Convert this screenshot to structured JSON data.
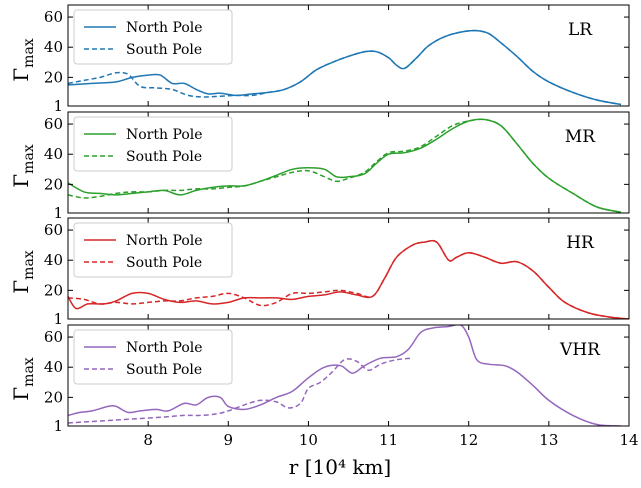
{
  "figure": {
    "xlabel": "r [10⁴ km]",
    "ylabel_main": "Γ",
    "ylabel_sub": "max"
  },
  "chart_data": [
    {
      "type": "line",
      "panel_label": "LR",
      "xlim": [
        7,
        14
      ],
      "ylim": [
        1,
        68
      ],
      "xticks": [
        8,
        9,
        10,
        11,
        12,
        13,
        14
      ],
      "yticks": [
        1,
        20,
        40,
        60
      ],
      "legend": "top-left",
      "color": "#1f77b4",
      "series": [
        {
          "name": "North Pole",
          "style": "solid",
          "x": [
            7.0,
            7.3,
            7.6,
            7.8,
            8.0,
            8.15,
            8.3,
            8.45,
            8.6,
            8.75,
            8.9,
            9.1,
            9.3,
            9.5,
            9.7,
            9.9,
            10.1,
            10.3,
            10.5,
            10.7,
            10.85,
            11.0,
            11.1,
            11.2,
            11.35,
            11.5,
            11.7,
            11.9,
            12.1,
            12.25,
            12.4,
            12.6,
            12.8,
            13.0,
            13.3,
            13.6,
            13.9
          ],
          "y": [
            15,
            16,
            17,
            20,
            21.5,
            21.5,
            16,
            16,
            12,
            9,
            9.5,
            8,
            9,
            10,
            12,
            17,
            25,
            30,
            34,
            37,
            37,
            33,
            28,
            26,
            33,
            41,
            47,
            50,
            51,
            49,
            43,
            34,
            24,
            17,
            10,
            5,
            2
          ]
        },
        {
          "name": "South Pole",
          "style": "dashed",
          "x": [
            7.0,
            7.2,
            7.4,
            7.6,
            7.75,
            7.9,
            8.1,
            8.3,
            8.5,
            8.7,
            8.9,
            9.1,
            9.3,
            9.5,
            9.7,
            9.9,
            10.1,
            10.3,
            10.5,
            10.7,
            10.85,
            11.0,
            11.1,
            11.2,
            11.35,
            11.5,
            11.7,
            11.9,
            12.1,
            12.25,
            12.4,
            12.6,
            12.8,
            13.0,
            13.3,
            13.6,
            13.9
          ],
          "y": [
            16,
            18,
            20,
            23,
            22,
            14,
            13,
            12,
            8,
            7,
            7.5,
            8,
            8,
            10,
            12,
            17,
            25,
            30,
            34,
            37,
            37,
            33,
            28,
            26,
            33,
            41,
            47,
            50,
            51,
            49,
            43,
            34,
            24,
            17,
            10,
            5,
            2
          ]
        }
      ]
    },
    {
      "type": "line",
      "panel_label": "MR",
      "xlim": [
        7,
        14
      ],
      "ylim": [
        1,
        68
      ],
      "xticks": [
        8,
        9,
        10,
        11,
        12,
        13,
        14
      ],
      "yticks": [
        1,
        20,
        40,
        60
      ],
      "legend": "top-left",
      "color": "#2ca02c",
      "series": [
        {
          "name": "North Pole",
          "style": "solid",
          "x": [
            7.0,
            7.2,
            7.4,
            7.6,
            7.8,
            8.0,
            8.2,
            8.4,
            8.6,
            8.8,
            9.0,
            9.2,
            9.4,
            9.6,
            9.8,
            10.0,
            10.2,
            10.35,
            10.5,
            10.7,
            10.85,
            11.0,
            11.2,
            11.4,
            11.6,
            11.8,
            12.0,
            12.2,
            12.4,
            12.6,
            12.8,
            13.0,
            13.3,
            13.6,
            13.9
          ],
          "y": [
            21,
            15,
            14,
            13,
            14,
            15,
            16,
            13,
            16,
            18,
            19,
            19,
            22,
            26,
            30,
            31,
            30,
            25,
            25,
            27,
            34,
            40,
            41,
            44,
            50,
            57,
            62,
            63,
            59,
            47,
            34,
            24,
            14,
            5,
            1.5
          ]
        },
        {
          "name": "South Pole",
          "style": "dashed",
          "x": [
            7.0,
            7.2,
            7.4,
            7.6,
            7.8,
            8.0,
            8.2,
            8.4,
            8.6,
            8.8,
            9.0,
            9.2,
            9.4,
            9.6,
            9.8,
            10.0,
            10.2,
            10.35,
            10.5,
            10.7,
            10.85,
            11.0,
            11.2,
            11.4,
            11.6,
            11.8,
            12.0,
            12.2,
            12.4,
            12.6,
            12.8,
            13.0,
            13.3,
            13.6,
            13.9
          ],
          "y": [
            13,
            11,
            12,
            14,
            15,
            15,
            16,
            16,
            17,
            17,
            18,
            19,
            22,
            25,
            28,
            29,
            25,
            22,
            24,
            28,
            35,
            41,
            42,
            45,
            52,
            59,
            62,
            63,
            59,
            47,
            34,
            24,
            14,
            5,
            1.5
          ]
        }
      ]
    },
    {
      "type": "line",
      "panel_label": "HR",
      "xlim": [
        7,
        14
      ],
      "ylim": [
        1,
        68
      ],
      "xticks": [
        8,
        9,
        10,
        11,
        12,
        13,
        14
      ],
      "yticks": [
        1,
        20,
        40,
        60
      ],
      "legend": "top-left",
      "color": "#d62728",
      "series": [
        {
          "name": "North Pole",
          "style": "solid",
          "x": [
            7.0,
            7.1,
            7.25,
            7.45,
            7.6,
            7.8,
            8.0,
            8.2,
            8.4,
            8.6,
            8.8,
            9.0,
            9.2,
            9.4,
            9.6,
            9.8,
            10.0,
            10.2,
            10.4,
            10.6,
            10.8,
            10.95,
            11.1,
            11.3,
            11.45,
            11.6,
            11.75,
            11.85,
            12.0,
            12.2,
            12.4,
            12.6,
            12.8,
            13.0,
            13.2,
            13.5,
            13.8,
            14.0
          ],
          "y": [
            16,
            8,
            11,
            11,
            13,
            18,
            18,
            14,
            12,
            13,
            11,
            12,
            15,
            15,
            15,
            14,
            16,
            17,
            19,
            17,
            16,
            28,
            42,
            50,
            52,
            52,
            40,
            42,
            45,
            42,
            38,
            39,
            33,
            22,
            12,
            5,
            2,
            1
          ]
        },
        {
          "name": "South Pole",
          "style": "dashed",
          "x": [
            7.0,
            7.2,
            7.4,
            7.6,
            7.8,
            8.0,
            8.2,
            8.4,
            8.6,
            8.8,
            9.0,
            9.2,
            9.4,
            9.6,
            9.8,
            10.0,
            10.2,
            10.4,
            10.6,
            10.8,
            10.95,
            11.1,
            11.3,
            11.45,
            11.6,
            11.75,
            11.85,
            12.0,
            12.2,
            12.4,
            12.6,
            12.8,
            13.0,
            13.2,
            13.5,
            13.8,
            14.0
          ],
          "y": [
            15,
            14,
            11,
            12,
            11,
            12,
            13,
            13,
            15,
            16,
            18,
            15,
            10,
            12,
            18,
            18,
            19,
            20,
            18,
            16,
            28,
            42,
            50,
            52,
            52,
            40,
            42,
            45,
            42,
            38,
            39,
            33,
            22,
            12,
            5,
            2,
            1
          ]
        }
      ]
    },
    {
      "type": "line",
      "panel_label": "VHR",
      "xlim": [
        7,
        14
      ],
      "ylim": [
        1,
        68
      ],
      "xticks": [
        8,
        9,
        10,
        11,
        12,
        13,
        14
      ],
      "yticks": [
        1,
        20,
        40,
        60
      ],
      "legend": "top-left",
      "color": "#9467bd",
      "series": [
        {
          "name": "North Pole",
          "style": "solid",
          "x": [
            7.0,
            7.15,
            7.3,
            7.5,
            7.6,
            7.75,
            7.9,
            8.1,
            8.25,
            8.45,
            8.6,
            8.75,
            8.9,
            9.0,
            9.2,
            9.4,
            9.6,
            9.8,
            10.0,
            10.2,
            10.4,
            10.55,
            10.7,
            10.9,
            11.1,
            11.25,
            11.4,
            11.55,
            11.75,
            11.9,
            12.0,
            12.1,
            12.25,
            12.45,
            12.6,
            12.8,
            13.0,
            13.3,
            13.6,
            13.9
          ],
          "y": [
            8,
            10,
            11,
            14,
            14,
            10,
            11,
            12,
            11,
            16,
            15,
            20,
            20,
            14,
            12,
            15,
            20,
            24,
            33,
            40,
            41,
            36,
            41,
            46,
            47,
            52,
            63,
            66,
            67,
            68,
            60,
            45,
            42,
            41,
            37,
            28,
            18,
            8,
            2,
            1
          ]
        },
        {
          "name": "South Pole",
          "style": "dashed",
          "x": [
            7.0,
            7.3,
            7.6,
            7.9,
            8.2,
            8.45,
            8.65,
            8.85,
            9.0,
            9.2,
            9.4,
            9.6,
            9.75,
            9.9,
            10.0,
            10.15,
            10.3,
            10.45,
            10.6,
            10.75,
            10.9,
            11.1,
            11.3
          ],
          "y": [
            3,
            4,
            5,
            6,
            7,
            8,
            8,
            9,
            11,
            15,
            18,
            17,
            13,
            16,
            26,
            30,
            37,
            45,
            44,
            38,
            42,
            45,
            46
          ]
        }
      ]
    }
  ]
}
